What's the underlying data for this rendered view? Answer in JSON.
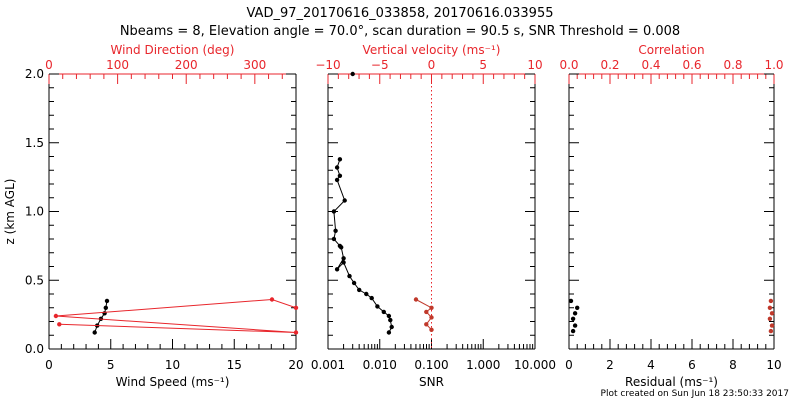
{
  "header": {
    "title_line1": "VAD_97_20170616_033858, 20170616.033955",
    "title_line2": "Nbeams = 8, Elevation angle = 70.0°, scan duration = 90.5 s, SNR Threshold = 0.008"
  },
  "footer": {
    "text": "Plot created on Sun Jun 18 23:50:33 2017"
  },
  "colors": {
    "black": "#000000",
    "red": "#e8262c",
    "dark_red": "#c0392b"
  },
  "chart_data": [
    {
      "type": "line",
      "panel": "left",
      "ylabel": "z (km AGL)",
      "ylim": [
        0,
        2.0
      ],
      "yticks": [
        "0.0",
        "0.5",
        "1.0",
        "1.5",
        "2.0"
      ],
      "xlabel": "Wind Speed (ms⁻¹)",
      "xlim": [
        0,
        20
      ],
      "xticks": [
        "0",
        "5",
        "10",
        "15",
        "20"
      ],
      "top_xlabel": "Wind Direction (deg)",
      "top_xlim": [
        0,
        360
      ],
      "top_xticks": [
        "0",
        "100",
        "200",
        "300"
      ],
      "series": [
        {
          "x": [
            4.7,
            4.6,
            4.5,
            4.2,
            3.9,
            3.7
          ],
          "y": [
            0.35,
            0.3,
            0.26,
            0.22,
            0.17,
            0.12
          ],
          "color": "black"
        },
        {
          "top_axis": true,
          "x": [
            360,
            325,
            10,
            360,
            15
          ],
          "y": [
            0.3,
            0.36,
            0.24,
            0.12,
            0.18
          ],
          "color": "red"
        }
      ]
    },
    {
      "type": "line",
      "panel": "middle",
      "xlabel": "SNR",
      "xscale": "log",
      "xlim": [
        0.001,
        10
      ],
      "xticks": [
        "0.001",
        "0.010",
        "0.100",
        "1.000",
        "10.000"
      ],
      "ylim": [
        0,
        2.0
      ],
      "top_xlabel": "Vertical velocity (ms⁻¹)",
      "top_xlim": [
        -10,
        10
      ],
      "top_xticks": [
        "−10",
        "−5",
        "0",
        "5",
        "10"
      ],
      "reference_line_top_x": 0,
      "series": [
        {
          "x": [
            0.0017,
            0.0015,
            0.0017,
            0.0015,
            0.0021,
            0.0013,
            0.0014,
            0.0013,
            0.0017,
            0.0018,
            0.002,
            0.0015,
            0.002,
            0.0026,
            0.0032,
            0.004,
            0.0055,
            0.007,
            0.009,
            0.012,
            0.015,
            0.016,
            0.017,
            0.015
          ],
          "y": [
            1.38,
            1.32,
            1.26,
            1.23,
            1.08,
            1.0,
            0.86,
            0.8,
            0.75,
            0.74,
            0.66,
            0.58,
            0.63,
            0.53,
            0.48,
            0.43,
            0.4,
            0.37,
            0.31,
            0.27,
            0.24,
            0.21,
            0.16,
            0.12
          ],
          "color": "black"
        },
        {
          "top_axis": true,
          "x": [
            -1.5,
            0.0,
            -0.5,
            0.0,
            -0.5,
            0.0
          ],
          "y": [
            0.36,
            0.3,
            0.27,
            0.23,
            0.18,
            0.14
          ],
          "color": "red"
        },
        {
          "note_point": true,
          "x": [
            0.003
          ],
          "y": [
            2.0
          ],
          "color": "black"
        }
      ]
    },
    {
      "type": "scatter",
      "panel": "right",
      "xlabel": "Residual (ms⁻¹)",
      "xlim": [
        0,
        10
      ],
      "xticks": [
        "0",
        "2",
        "4",
        "6",
        "8",
        "10"
      ],
      "ylim": [
        0,
        2.0
      ],
      "top_xlabel": "Correlation",
      "top_xlim": [
        0,
        1
      ],
      "top_xticks": [
        "0.0",
        "0.2",
        "0.4",
        "0.6",
        "0.8",
        "1.0"
      ],
      "series": [
        {
          "x": [
            0.1,
            0.4,
            0.3,
            0.2,
            0.3,
            0.2
          ],
          "y": [
            0.35,
            0.3,
            0.26,
            0.22,
            0.17,
            0.13
          ],
          "color": "black"
        },
        {
          "top_axis": true,
          "x": [
            0.985,
            0.98,
            0.99,
            0.98,
            0.99,
            0.985
          ],
          "y": [
            0.35,
            0.3,
            0.26,
            0.22,
            0.17,
            0.13
          ],
          "color": "red"
        }
      ]
    }
  ]
}
